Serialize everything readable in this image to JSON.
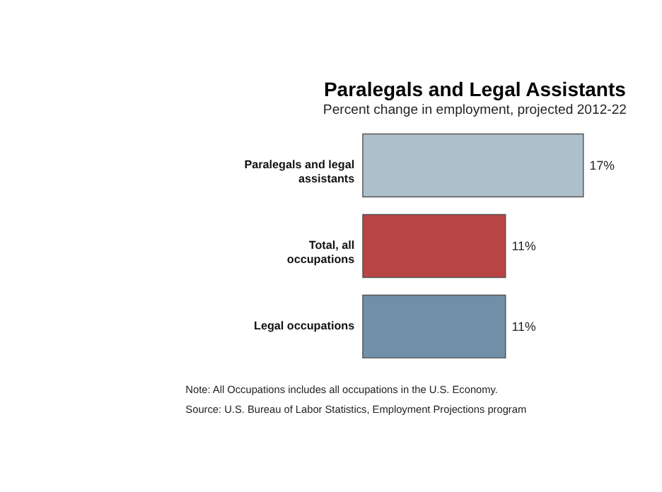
{
  "chart_data": {
    "type": "bar",
    "orientation": "horizontal",
    "title": "Paralegals and Legal Assistants",
    "subtitle": "Percent change in employment, projected 2012-22",
    "categories": [
      "Paralegals and legal assistants",
      "Total, all occupations",
      "Legal occupations"
    ],
    "values": [
      17,
      11,
      11
    ],
    "colors": [
      "#aebfcc",
      "#b84444",
      "#7090a8"
    ],
    "value_labels": [
      "17%",
      "11%",
      "11%"
    ],
    "annotations": [
      "Note: All Occupations includes all occupations in the U.S. Economy.",
      "Source: U.S. Bureau of Labor Statistics, Employment Projections program"
    ]
  }
}
